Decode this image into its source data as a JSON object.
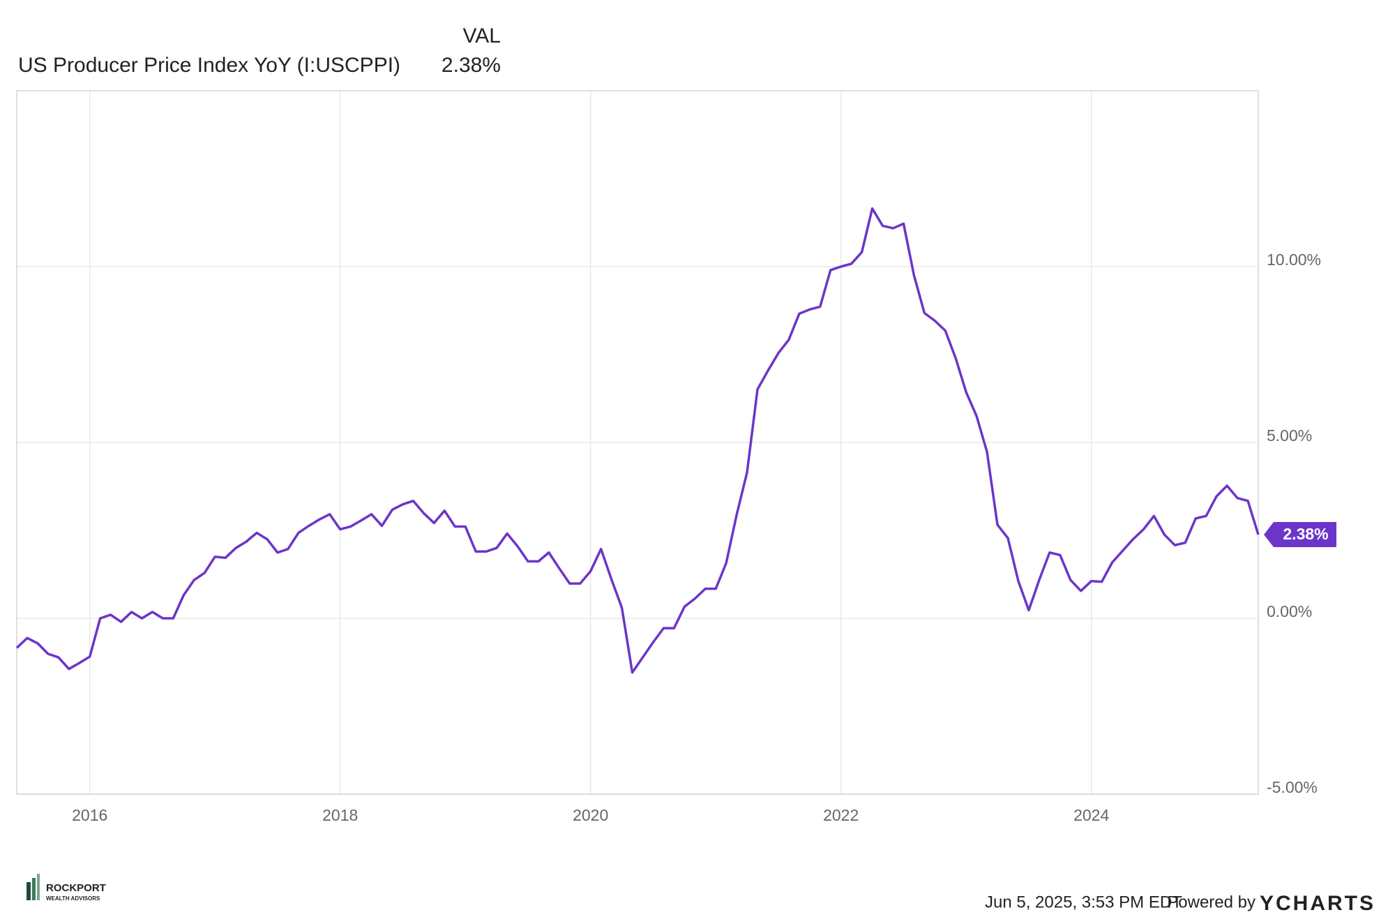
{
  "chart_data": {
    "type": "line",
    "value_column": "VAL",
    "series": [
      {
        "name": "US Producer Price Index YoY (I:USCPPI)",
        "color": "#6c35c9",
        "values": [
          -0.84,
          -0.56,
          -0.71,
          -1.01,
          -1.11,
          -1.44,
          -1.27,
          -1.09,
          0.0,
          0.1,
          -0.1,
          0.18,
          0.0,
          0.18,
          0,
          0,
          0.66,
          1.09,
          1.29,
          1.75,
          1.72,
          2.0,
          2.18,
          2.43,
          2.25,
          1.87,
          1.97,
          2.43,
          2.63,
          2.81,
          2.96,
          2.53,
          2.61,
          2.78,
          2.96,
          2.63,
          3.09,
          3.24,
          3.34,
          2.99,
          2.71,
          3.06,
          2.61,
          2.61,
          1.9,
          1.9,
          2.0,
          2.41,
          2.05,
          1.62,
          1.62,
          1.87,
          1.42,
          0.99,
          0.99,
          1.34,
          1.97,
          1.11,
          0.3,
          -1.54,
          -1.11,
          -0.68,
          -0.28,
          -0.28,
          0.33,
          0.56,
          0.84,
          0.84,
          1.57,
          2.94,
          4.15,
          6.51,
          7.04,
          7.54,
          7.92,
          8.66,
          8.78,
          8.86,
          9.9,
          10.0,
          10.08,
          10.41,
          11.65,
          11.16,
          11.09,
          11.22,
          9.75,
          8.68,
          8.46,
          8.18,
          7.39,
          6.43,
          5.75,
          4.73,
          2.66,
          2.28,
          1.06,
          0.23,
          1.09,
          1.87,
          1.8,
          1.09,
          0.78,
          1.06,
          1.04,
          1.59,
          1.92,
          2.25,
          2.53,
          2.91,
          2.38,
          2.08,
          2.15,
          2.84,
          2.91,
          3.47,
          3.77,
          3.42,
          3.34,
          2.38
        ]
      }
    ],
    "latest": {
      "value": 2.38,
      "label": "2.38%"
    },
    "x": [
      "2015-05",
      "2015-06",
      "2015-07",
      "2015-08",
      "2015-09",
      "2015-10",
      "2015-11",
      "2015-12",
      "2016-01",
      "2016-02",
      "2016-03",
      "2016-04",
      "2016-05",
      "2016-06",
      "2016-07",
      "2016-08",
      "2016-09",
      "2016-10",
      "2016-11",
      "2016-12",
      "2017-01",
      "2017-02",
      "2017-03",
      "2017-04",
      "2017-05",
      "2017-06",
      "2017-07",
      "2017-08",
      "2017-09",
      "2017-10",
      "2017-11",
      "2017-12",
      "2018-01",
      "2018-02",
      "2018-03",
      "2018-04",
      "2018-05",
      "2018-06",
      "2018-07",
      "2018-08",
      "2018-09",
      "2018-10",
      "2018-11",
      "2018-12",
      "2019-01",
      "2019-02",
      "2019-03",
      "2019-04",
      "2019-05",
      "2019-06",
      "2019-07",
      "2019-08",
      "2019-09",
      "2019-10",
      "2019-11",
      "2019-12",
      "2020-01",
      "2020-02",
      "2020-03",
      "2020-04",
      "2020-05",
      "2020-06",
      "2020-07",
      "2020-08",
      "2020-09",
      "2020-10",
      "2020-11",
      "2020-12",
      "2021-01",
      "2021-02",
      "2021-03",
      "2021-04",
      "2021-05",
      "2021-06",
      "2021-07",
      "2021-08",
      "2021-09",
      "2021-10",
      "2021-11",
      "2021-12",
      "2022-01",
      "2022-02",
      "2022-03",
      "2022-04",
      "2022-05",
      "2022-06",
      "2022-07",
      "2022-08",
      "2022-09",
      "2022-10",
      "2022-11",
      "2022-12",
      "2023-01",
      "2023-02",
      "2023-03",
      "2023-04",
      "2023-05",
      "2023-06",
      "2023-07",
      "2023-08",
      "2023-09",
      "2023-10",
      "2023-11",
      "2023-12",
      "2024-01",
      "2024-02",
      "2024-03",
      "2024-04",
      "2024-05",
      "2024-06",
      "2024-07",
      "2024-08",
      "2024-09",
      "2024-10",
      "2024-11",
      "2024-12",
      "2025-01",
      "2025-02",
      "2025-03",
      "2025-04"
    ],
    "xlim": [
      "2015-05",
      "2025-04"
    ],
    "xticks": [
      2016,
      2018,
      2020,
      2022,
      2024
    ],
    "ylim": [
      -5,
      15
    ],
    "yticks": [
      {
        "value": -5,
        "label": "-5.00%"
      },
      {
        "value": 0,
        "label": "0.00%"
      },
      {
        "value": 5,
        "label": "5.00%"
      },
      {
        "value": 10,
        "label": "10.00%"
      }
    ],
    "grid": true
  },
  "footer": {
    "timestamp": "Jun 5, 2025, 3:53 PM EDT",
    "powered_by": "Powered by",
    "brand": "YCHARTS",
    "logo": {
      "name": "ROCKPORT",
      "tagline": "WEALTH ADVISORS"
    }
  }
}
